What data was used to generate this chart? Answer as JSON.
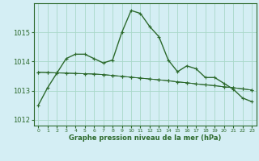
{
  "title": "Graphe pression niveau de la mer (hPa)",
  "background_color": "#d4eef4",
  "grid_color": "#a8d8c8",
  "line_color": "#2d6a2d",
  "marker_color": "#2d6a2d",
  "xlim": [
    -0.5,
    23.5
  ],
  "ylim": [
    1011.8,
    1016.0
  ],
  "yticks": [
    1012,
    1013,
    1014,
    1015
  ],
  "xticks": [
    0,
    1,
    2,
    3,
    4,
    5,
    6,
    7,
    8,
    9,
    10,
    11,
    12,
    13,
    14,
    15,
    16,
    17,
    18,
    19,
    20,
    21,
    22,
    23
  ],
  "series": [
    [
      1012.5,
      1013.1,
      1013.6,
      1014.1,
      1014.25,
      1014.25,
      1014.1,
      1013.95,
      1014.05,
      1015.0,
      1015.75,
      1015.65,
      1015.2,
      1014.85,
      1014.05,
      1013.65,
      1013.85,
      1013.75,
      1013.45,
      1013.45,
      1013.25,
      1013.05,
      1012.75,
      1012.62
    ],
    [
      1013.63,
      1013.62,
      1013.61,
      1013.6,
      1013.59,
      1013.58,
      1013.57,
      1013.55,
      1013.52,
      1013.49,
      1013.46,
      1013.43,
      1013.4,
      1013.37,
      1013.34,
      1013.3,
      1013.27,
      1013.23,
      1013.2,
      1013.17,
      1013.13,
      1013.1,
      1013.06,
      1013.02
    ],
    [
      1013.63,
      1013.62,
      1013.61,
      1013.6,
      1013.59,
      1013.58,
      1013.57,
      1013.55,
      1013.52,
      1013.49,
      1013.46,
      1013.43,
      1013.4,
      1013.37,
      1013.34,
      1013.3,
      1013.27,
      1013.23,
      1013.2,
      1013.17,
      1013.13,
      1013.1,
      1013.06,
      1013.02
    ]
  ]
}
